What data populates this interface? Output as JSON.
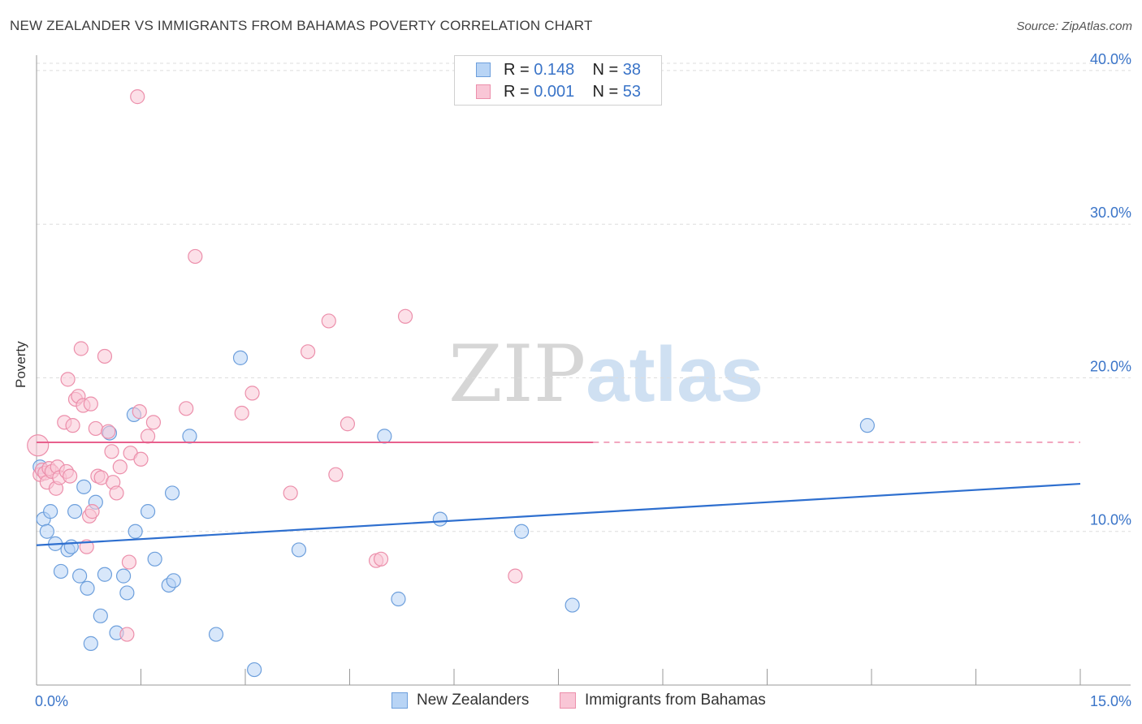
{
  "title": "NEW ZEALANDER VS IMMIGRANTS FROM BAHAMAS POVERTY CORRELATION CHART",
  "source": "Source: ZipAtlas.com",
  "watermark": {
    "zip": "ZIP",
    "atlas": "atlas"
  },
  "legend": {
    "series1": {
      "r_label": "R =",
      "r_value": "0.148",
      "n_label": "N =",
      "n_value": "38"
    },
    "series2": {
      "r_label": "R =",
      "r_value": "0.001",
      "n_label": "N =",
      "n_value": "53"
    }
  },
  "colors": {
    "blue_fill": "#b8d4f5",
    "blue_stroke": "#6d9fdc",
    "blue_line": "#2e6fcf",
    "pink_fill": "#f9c6d6",
    "pink_stroke": "#ec8fab",
    "pink_line": "#e8608d",
    "axis_text": "#3a74c8",
    "grid": "#dddddd"
  },
  "chart_data": {
    "type": "scatter",
    "title": "NEW ZEALANDER VS IMMIGRANTS FROM BAHAMAS POVERTY CORRELATION CHART",
    "xlabel": "",
    "ylabel": "Poverty",
    "xlim": [
      0,
      15
    ],
    "ylim": [
      0,
      41
    ],
    "x_tick_labels": [
      {
        "value": 0,
        "label": "0.0%"
      },
      {
        "value": 15,
        "label": "15.0%"
      }
    ],
    "x_minor_ticks": [
      1.5,
      3.0,
      4.5,
      6.0,
      7.5,
      9.0,
      10.5,
      12.0,
      13.5,
      15.0
    ],
    "y_ticks": [
      {
        "value": 10,
        "label": "10.0%"
      },
      {
        "value": 20,
        "label": "20.0%"
      },
      {
        "value": 30,
        "label": "30.0%"
      },
      {
        "value": 40,
        "label": "40.0%"
      }
    ],
    "series": [
      {
        "name": "New Zealanders",
        "r": 0.148,
        "n": 38,
        "trend": {
          "x0": 0.0,
          "y0": 9.1,
          "x1": 15.0,
          "y1": 13.1,
          "dashed_from": null
        },
        "points": [
          [
            0.05,
            14.2
          ],
          [
            0.1,
            10.8
          ],
          [
            0.15,
            10.0
          ],
          [
            0.2,
            11.3
          ],
          [
            0.27,
            9.2
          ],
          [
            0.35,
            7.4
          ],
          [
            0.45,
            8.8
          ],
          [
            0.5,
            9.0
          ],
          [
            0.55,
            11.3
          ],
          [
            0.62,
            7.1
          ],
          [
            0.68,
            12.9
          ],
          [
            0.73,
            6.3
          ],
          [
            0.78,
            2.7
          ],
          [
            0.85,
            11.9
          ],
          [
            0.92,
            4.5
          ],
          [
            0.98,
            7.2
          ],
          [
            1.05,
            16.4
          ],
          [
            1.15,
            3.4
          ],
          [
            1.25,
            7.1
          ],
          [
            1.3,
            6.0
          ],
          [
            1.4,
            17.6
          ],
          [
            1.42,
            10.0
          ],
          [
            1.6,
            11.3
          ],
          [
            1.7,
            8.2
          ],
          [
            1.9,
            6.5
          ],
          [
            1.95,
            12.5
          ],
          [
            1.97,
            6.8
          ],
          [
            2.2,
            16.2
          ],
          [
            2.58,
            3.3
          ],
          [
            2.93,
            21.3
          ],
          [
            3.13,
            1.0
          ],
          [
            3.77,
            8.8
          ],
          [
            5.0,
            16.2
          ],
          [
            5.2,
            5.6
          ],
          [
            5.8,
            10.8
          ],
          [
            6.97,
            10.0
          ],
          [
            7.7,
            5.2
          ],
          [
            11.94,
            16.9
          ]
        ]
      },
      {
        "name": "Immigrants from Bahamas",
        "r": 0.001,
        "n": 53,
        "trend": {
          "x0": 0.0,
          "y0": 15.8,
          "x1": 15.0,
          "y1": 15.8,
          "dashed_from": 8.0
        },
        "points": [
          [
            0.02,
            15.6
          ],
          [
            0.05,
            13.7
          ],
          [
            0.08,
            14.0
          ],
          [
            0.12,
            13.8
          ],
          [
            0.15,
            13.2
          ],
          [
            0.18,
            14.1
          ],
          [
            0.22,
            13.9
          ],
          [
            0.28,
            12.8
          ],
          [
            0.3,
            14.2
          ],
          [
            0.33,
            13.5
          ],
          [
            0.4,
            17.1
          ],
          [
            0.43,
            13.9
          ],
          [
            0.45,
            19.9
          ],
          [
            0.48,
            13.6
          ],
          [
            0.52,
            16.9
          ],
          [
            0.56,
            18.6
          ],
          [
            0.6,
            18.8
          ],
          [
            0.64,
            21.9
          ],
          [
            0.67,
            18.2
          ],
          [
            0.72,
            9.0
          ],
          [
            0.78,
            18.3
          ],
          [
            0.76,
            11.0
          ],
          [
            0.8,
            11.3
          ],
          [
            0.85,
            16.7
          ],
          [
            0.88,
            13.6
          ],
          [
            0.93,
            13.5
          ],
          [
            0.98,
            21.4
          ],
          [
            1.03,
            16.5
          ],
          [
            1.08,
            15.2
          ],
          [
            1.1,
            13.2
          ],
          [
            1.15,
            12.5
          ],
          [
            1.2,
            14.2
          ],
          [
            1.3,
            3.3
          ],
          [
            1.33,
            8.0
          ],
          [
            1.35,
            15.1
          ],
          [
            1.45,
            38.3
          ],
          [
            1.48,
            17.8
          ],
          [
            1.5,
            14.7
          ],
          [
            1.6,
            16.2
          ],
          [
            1.68,
            17.1
          ],
          [
            2.15,
            18.0
          ],
          [
            2.28,
            27.9
          ],
          [
            2.95,
            17.7
          ],
          [
            3.1,
            19.0
          ],
          [
            3.65,
            12.5
          ],
          [
            3.9,
            21.7
          ],
          [
            4.2,
            23.7
          ],
          [
            4.3,
            13.7
          ],
          [
            4.47,
            17.0
          ],
          [
            4.88,
            8.1
          ],
          [
            4.95,
            8.2
          ],
          [
            5.3,
            24.0
          ],
          [
            6.88,
            7.1
          ]
        ]
      }
    ],
    "legend_position": "top-center"
  },
  "bottom_legend": {
    "series1": "New Zealanders",
    "series2": "Immigrants from Bahamas"
  }
}
